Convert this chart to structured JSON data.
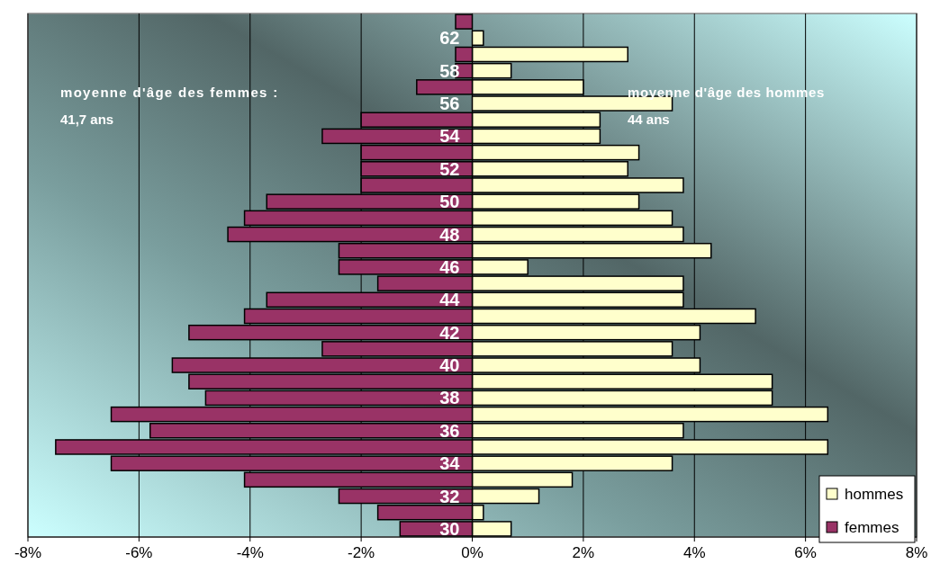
{
  "chart_data": {
    "type": "bar",
    "orientation": "horizontal",
    "stacked": true,
    "categories": [
      null,
      "62",
      null,
      "58",
      null,
      "56",
      null,
      "54",
      null,
      "52",
      null,
      "50",
      null,
      "48",
      null,
      "46",
      null,
      "44",
      null,
      "42",
      null,
      "40",
      null,
      "38",
      null,
      "36",
      null,
      "34",
      null,
      "32",
      null,
      "30"
    ],
    "series": [
      {
        "name": "hommes",
        "color": "#ffffcc",
        "values": [
          0,
          0.2,
          2.8,
          0.7,
          2.0,
          3.6,
          2.3,
          2.3,
          3.0,
          2.8,
          3.8,
          3.0,
          3.6,
          3.8,
          4.3,
          1.0,
          3.8,
          3.8,
          5.1,
          4.1,
          3.6,
          4.1,
          5.4,
          5.4,
          6.4,
          3.8,
          6.4,
          3.6,
          1.8,
          1.2,
          0.2,
          0.7
        ]
      },
      {
        "name": "femmes",
        "color": "#993366",
        "values": [
          -0.3,
          0,
          -0.3,
          -0.3,
          -1.0,
          0,
          -2.0,
          -2.7,
          -2.0,
          -2.0,
          -2.0,
          -3.7,
          -4.1,
          -4.4,
          -2.4,
          -2.4,
          -1.7,
          -3.7,
          -4.1,
          -5.1,
          -2.7,
          -5.4,
          -5.1,
          -4.8,
          -6.5,
          -5.8,
          -7.5,
          -6.5,
          -4.1,
          -2.4,
          -1.7,
          -1.3
        ]
      }
    ],
    "xlim": [
      -8,
      8
    ],
    "xticks": [
      {
        "value": -8,
        "label": "-8%"
      },
      {
        "value": -6,
        "label": "-6%"
      },
      {
        "value": -4,
        "label": "-4%"
      },
      {
        "value": -2,
        "label": "-2%"
      },
      {
        "value": 0,
        "label": "0%"
      },
      {
        "value": 2,
        "label": "2%"
      },
      {
        "value": 4,
        "label": "4%"
      },
      {
        "value": 6,
        "label": "6%"
      },
      {
        "value": 8,
        "label": "8%"
      }
    ],
    "grid": "x",
    "legend": "bottom right",
    "annotations": [
      "moyenne d'âge des femmes :\n41,7 ans",
      "moyenne d'âge des hommes\n44 ans"
    ]
  }
}
